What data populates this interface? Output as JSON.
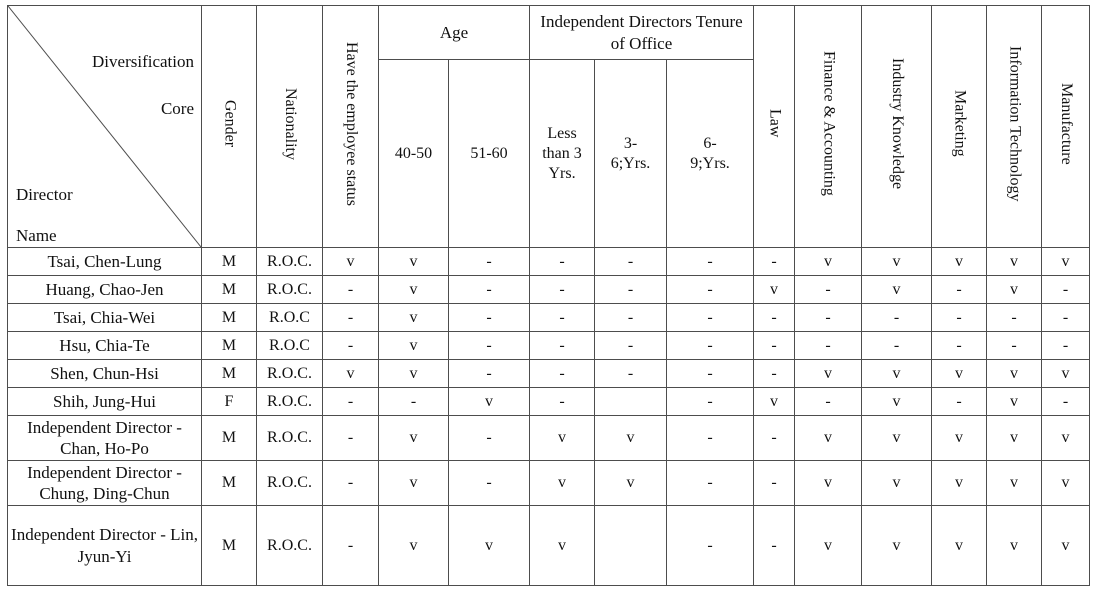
{
  "table": {
    "corner": {
      "top_right_lines": [
        "Diversification",
        "Core"
      ],
      "bottom_left_lines": [
        "Director",
        "Name"
      ]
    },
    "left_columns": [
      "Gender",
      "Nationality",
      "Have the employee status"
    ],
    "age_group": {
      "label": "Age",
      "sub": [
        "40-50",
        "51-60"
      ]
    },
    "tenure_group": {
      "label": "Independent Directors Tenure of Office",
      "sub": [
        "Less than 3 Yrs.",
        "3-6;Yrs.",
        "6-9;Yrs."
      ]
    },
    "right_columns": [
      "Law",
      "Finance & Accounting",
      "Industry Knowledge",
      "Marketing",
      "Information Technology",
      "Manufacture"
    ],
    "mark_yes": "v",
    "mark_no": "-",
    "rows": [
      {
        "name": "Tsai, Chen-Lung",
        "gender": "M",
        "nationality": "R.O.C.",
        "marks": [
          "v",
          "v",
          "-",
          "-",
          "-",
          "-",
          "-",
          "v",
          "v",
          "v",
          "v",
          "v"
        ]
      },
      {
        "name": "Huang, Chao-Jen",
        "gender": "M",
        "nationality": "R.O.C.",
        "marks": [
          "-",
          "v",
          "-",
          "-",
          "-",
          "-",
          "v",
          "-",
          "v",
          "-",
          "v",
          "-"
        ]
      },
      {
        "name": "Tsai, Chia-Wei",
        "gender": "M",
        "nationality": "R.O.C",
        "marks": [
          "-",
          "v",
          "-",
          "-",
          "-",
          "-",
          "-",
          "-",
          "-",
          "-",
          "-",
          "-"
        ]
      },
      {
        "name": "Hsu, Chia-Te",
        "gender": "M",
        "nationality": "R.O.C",
        "marks": [
          "-",
          "v",
          "-",
          "-",
          "-",
          "-",
          "-",
          "-",
          "-",
          "-",
          "-",
          "-"
        ]
      },
      {
        "name": "Shen, Chun-Hsi",
        "gender": "M",
        "nationality": "R.O.C.",
        "marks": [
          "v",
          "v",
          "-",
          "-",
          "-",
          "-",
          "-",
          "v",
          "v",
          "v",
          "v",
          "v"
        ]
      },
      {
        "name": "Shih, Jung-Hui",
        "gender": "F",
        "nationality": "R.O.C.",
        "marks": [
          "-",
          "-",
          "v",
          "-",
          "",
          "-",
          "v",
          "-",
          "v",
          "-",
          "v",
          "-"
        ]
      },
      {
        "name": "Independent Director - Chan, Ho-Po",
        "gender": "M",
        "nationality": "R.O.C.",
        "marks": [
          "-",
          "v",
          "-",
          "v",
          "v",
          "-",
          "-",
          "v",
          "v",
          "v",
          "v",
          "v"
        ]
      },
      {
        "name": "Independent Director - Chung, Ding-Chun",
        "gender": "M",
        "nationality": "R.O.C.",
        "marks": [
          "-",
          "v",
          "-",
          "v",
          "v",
          "-",
          "-",
          "v",
          "v",
          "v",
          "v",
          "v"
        ]
      },
      {
        "name": "Independent Director - Lin, Jyun-Yi",
        "gender": "M",
        "nationality": "R.O.C.",
        "marks": [
          "-",
          "v",
          "v",
          "v",
          "",
          "-",
          "-",
          "v",
          "v",
          "v",
          "v",
          "v"
        ]
      }
    ]
  }
}
